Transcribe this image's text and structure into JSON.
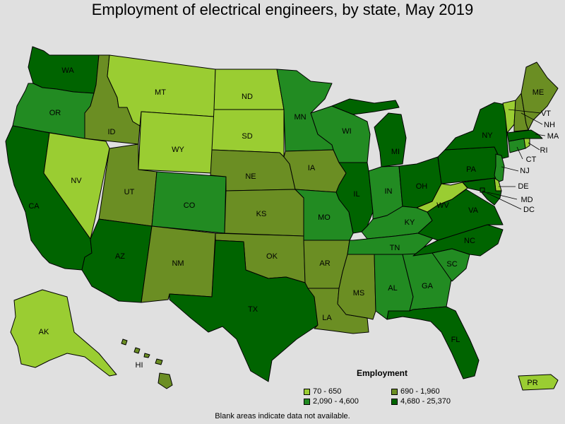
{
  "title": "Employment of electrical engineers, by state, May 2019",
  "legend": {
    "title": "Employment",
    "classes": [
      {
        "label": "70 - 650",
        "color": "#9acd32"
      },
      {
        "label": "690 - 1,960",
        "color": "#6b8e23"
      },
      {
        "label": "2,090 - 4,600",
        "color": "#228b22"
      },
      {
        "label": "4,680 - 25,370",
        "color": "#006400"
      }
    ]
  },
  "footnote": "Blank areas indicate data not available.",
  "states": {
    "WA": {
      "label": "WA",
      "class": 3
    },
    "OR": {
      "label": "OR",
      "class": 2
    },
    "CA": {
      "label": "CA",
      "class": 3
    },
    "ID": {
      "label": "ID",
      "class": 1
    },
    "NV": {
      "label": "NV",
      "class": 0
    },
    "MT": {
      "label": "MT",
      "class": 0
    },
    "WY": {
      "label": "WY",
      "class": 0
    },
    "UT": {
      "label": "UT",
      "class": 1
    },
    "AZ": {
      "label": "AZ",
      "class": 3
    },
    "CO": {
      "label": "CO",
      "class": 2
    },
    "NM": {
      "label": "NM",
      "class": 1
    },
    "ND": {
      "label": "ND",
      "class": 0
    },
    "SD": {
      "label": "SD",
      "class": 0
    },
    "NE": {
      "label": "NE",
      "class": 1
    },
    "KS": {
      "label": "KS",
      "class": 1
    },
    "OK": {
      "label": "OK",
      "class": 1
    },
    "TX": {
      "label": "TX",
      "class": 3
    },
    "MN": {
      "label": "MN",
      "class": 2
    },
    "IA": {
      "label": "IA",
      "class": 1
    },
    "MO": {
      "label": "MO",
      "class": 2
    },
    "AR": {
      "label": "AR",
      "class": 1
    },
    "LA": {
      "label": "LA",
      "class": 1
    },
    "WI": {
      "label": "WI",
      "class": 2
    },
    "IL": {
      "label": "IL",
      "class": 3
    },
    "MI": {
      "label": "MI",
      "class": 3
    },
    "IN": {
      "label": "IN",
      "class": 2
    },
    "OH": {
      "label": "OH",
      "class": 3
    },
    "KY": {
      "label": "KY",
      "class": 2
    },
    "TN": {
      "label": "TN",
      "class": 2
    },
    "MS": {
      "label": "MS",
      "class": 1
    },
    "AL": {
      "label": "AL",
      "class": 2
    },
    "GA": {
      "label": "GA",
      "class": 2
    },
    "FL": {
      "label": "FL",
      "class": 3
    },
    "SC": {
      "label": "SC",
      "class": 2
    },
    "NC": {
      "label": "NC",
      "class": 3
    },
    "VA": {
      "label": "VA",
      "class": 3
    },
    "WV": {
      "label": "WV",
      "class": 0
    },
    "PA": {
      "label": "PA",
      "class": 3
    },
    "NY": {
      "label": "NY",
      "class": 3
    },
    "NJ": {
      "label": "NJ",
      "class": 2
    },
    "DE": {
      "label": "DE",
      "class": 0
    },
    "MD": {
      "label": "MD",
      "class": 3
    },
    "DC": {
      "label": "DC",
      "class": 3
    },
    "CT": {
      "label": "CT",
      "class": 2
    },
    "RI": {
      "label": "RI",
      "class": 0
    },
    "MA": {
      "label": "MA",
      "class": 3
    },
    "VT": {
      "label": "VT",
      "class": 0
    },
    "NH": {
      "label": "NH",
      "class": 1
    },
    "ME": {
      "label": "ME",
      "class": 1
    },
    "AK": {
      "label": "AK",
      "class": 0
    },
    "HI": {
      "label": "HI",
      "class": 1
    },
    "PR": {
      "label": "PR",
      "class": 0
    }
  }
}
